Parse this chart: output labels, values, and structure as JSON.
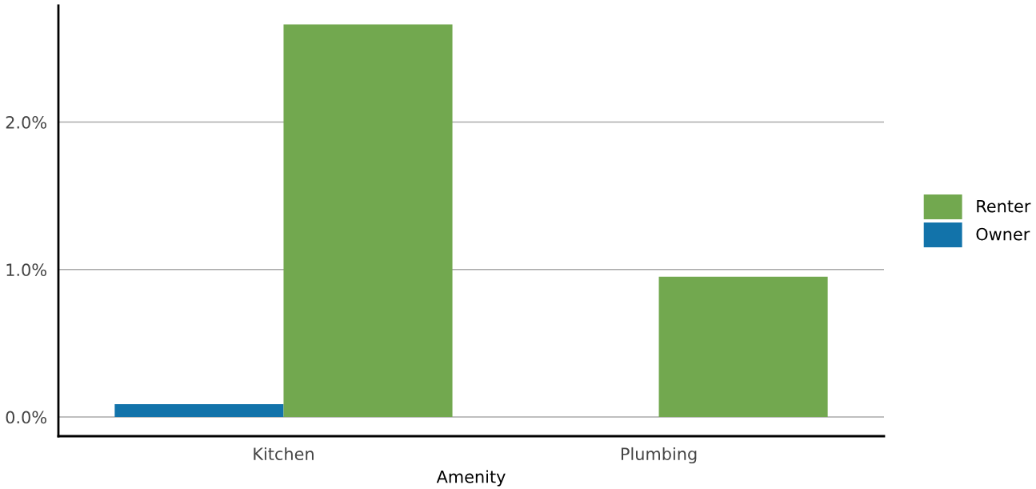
{
  "chart_data": {
    "type": "bar",
    "xlabel": "Amenity",
    "categories": [
      "Kitchen",
      "Plumbing"
    ],
    "series": [
      {
        "name": "Owner",
        "color": "#1273aa",
        "values": [
          0.087,
          0
        ]
      },
      {
        "name": "Renter",
        "color": "#72a84f",
        "values": [
          2.663,
          0.951
        ]
      }
    ],
    "ylim": [
      -0.13,
      2.79
    ],
    "yticks": [
      {
        "value": 0,
        "label": "0.0%"
      },
      {
        "value": 1,
        "label": "1.0%"
      },
      {
        "value": 2,
        "label": "2.0%"
      }
    ],
    "grid": "y",
    "legend": "right"
  }
}
